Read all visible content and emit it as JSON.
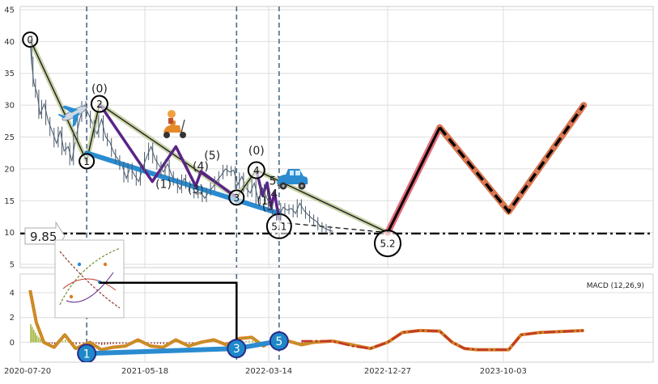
{
  "chart_data": [
    {
      "type": "line",
      "panel": "price",
      "title": "",
      "xlabel": "",
      "ylabel": "",
      "ylim": [
        4.5,
        45.5
      ],
      "y_ticks": [
        5,
        10,
        15,
        20,
        25,
        30,
        35,
        40,
        45
      ],
      "x_ticks": [
        "2020-07-20",
        "2021-05-18",
        "2022-03-14",
        "2022-12-27",
        "2023-10-03"
      ],
      "x_tick_dates": [
        "2020-07-20",
        "2021-05-18",
        "2022-03-14",
        "2022-12-27",
        "2023-10-03"
      ],
      "xlim": [
        "2020-07-20",
        "2024-09-30"
      ],
      "grid": true,
      "price_series": {
        "name": "",
        "x": [
          "2020-08-13",
          "2020-08-16",
          "2020-08-22",
          "2020-08-30",
          "2020-09-06",
          "2020-09-16",
          "2020-09-26",
          "2020-10-06",
          "2020-10-16",
          "2020-10-25",
          "2020-11-03",
          "2020-11-13",
          "2020-11-22",
          "2020-12-02",
          "2020-12-12",
          "2020-12-22",
          "2021-01-02",
          "2021-01-12",
          "2021-01-22",
          "2021-02-02",
          "2021-02-12",
          "2021-02-22",
          "2021-03-04",
          "2021-03-14",
          "2021-03-24",
          "2021-04-03",
          "2021-04-13",
          "2021-04-23",
          "2021-05-03",
          "2021-05-13",
          "2021-05-23",
          "2021-06-02",
          "2021-06-12",
          "2021-06-22",
          "2021-07-02",
          "2021-07-12",
          "2021-07-22",
          "2021-08-01",
          "2021-08-11",
          "2021-08-21",
          "2021-08-31",
          "2021-09-10",
          "2021-09-20",
          "2021-09-30",
          "2021-10-10",
          "2021-10-20",
          "2021-10-30",
          "2021-11-09",
          "2021-11-19",
          "2021-11-29",
          "2021-12-09",
          "2021-12-19",
          "2021-12-29",
          "2022-01-08",
          "2022-01-18",
          "2022-01-28",
          "2022-02-07",
          "2022-02-17",
          "2022-02-27",
          "2022-03-09",
          "2022-03-19",
          "2022-03-29",
          "2022-04-08",
          "2022-04-18",
          "2022-04-28",
          "2022-05-08",
          "2022-05-18",
          "2022-05-28",
          "2022-06-07",
          "2022-06-17",
          "2022-06-27",
          "2022-07-07",
          "2022-07-17",
          "2022-07-27",
          "2022-08-06",
          "2022-08-16"
        ],
        "y": [
          40.3,
          37.0,
          33.5,
          31.8,
          28.5,
          30.2,
          27.5,
          25.8,
          24.0,
          26.0,
          22.8,
          23.5,
          21.2,
          25.0,
          28.0,
          30.0,
          28.5,
          27.0,
          25.5,
          27.8,
          25.0,
          24.2,
          22.5,
          21.5,
          20.5,
          18.5,
          20.3,
          19.0,
          18.0,
          20.2,
          22.0,
          23.5,
          21.5,
          20.5,
          19.5,
          20.8,
          19.0,
          18.0,
          16.8,
          18.5,
          17.5,
          17.0,
          16.0,
          16.3,
          15.4,
          16.4,
          17.2,
          18.2,
          19.0,
          20.0,
          19.5,
          19.8,
          17.5,
          18.8,
          17.0,
          16.2,
          17.8,
          15.0,
          17.0,
          15.5,
          14.0,
          13.0,
          12.5,
          14.0,
          13.5,
          13.8,
          13.0,
          14.6,
          13.5,
          12.8,
          12.2,
          11.8,
          11.0,
          10.7,
          10.4,
          10.2
        ]
      },
      "projection": {
        "x": [
          "2022-12-27",
          "2023-05-02",
          "2023-10-16",
          "2024-04-15"
        ],
        "y": [
          10.0,
          26.5,
          13.3,
          30.0
        ]
      },
      "horizontal_line": {
        "value": 9.85,
        "label": "9.85"
      },
      "vertical_lines": [
        "2020-12-28",
        "2021-12-26",
        "2022-04-08"
      ],
      "main_wave": [
        {
          "date": "2020-08-13",
          "value": 40.3,
          "label": "0"
        },
        {
          "date": "2020-12-28",
          "value": 21.2,
          "label": "1"
        },
        {
          "date": "2021-01-28",
          "value": 30.2,
          "label": "2"
        },
        {
          "date": "2021-12-26",
          "value": 15.5,
          "label": "3"
        },
        {
          "date": "2022-02-12",
          "value": 19.8,
          "label": "4"
        },
        {
          "date": "2022-04-08",
          "value": 11.0,
          "label": "5.1"
        },
        {
          "date": "2022-12-27",
          "value": 8.3,
          "label": "5.2"
        }
      ],
      "sub_wave_labels": [
        {
          "date": "2021-01-28",
          "value": 32.0,
          "label": "(0)"
        },
        {
          "date": "2021-07-02",
          "value": 17.0,
          "label": "(1)"
        },
        {
          "date": "2021-09-18",
          "value": 16.2,
          "label": "(3)"
        },
        {
          "date": "2021-09-30",
          "value": 19.8,
          "label": "(4)"
        },
        {
          "date": "2021-10-28",
          "value": 21.5,
          "label": "(5)"
        },
        {
          "date": "2022-02-12",
          "value": 22.3,
          "label": "(0)"
        },
        {
          "date": "2022-02-27",
          "value": 14.4,
          "label": "(1"
        },
        {
          "date": "2022-03-12",
          "value": 13.5,
          "label": "(3"
        },
        {
          "date": "2022-03-22",
          "value": 15.5,
          "label": "(4"
        },
        {
          "date": "2022-03-29",
          "value": 17.5,
          "label": "5)"
        }
      ],
      "icons": [
        "airplane-icon",
        "scooter-icon",
        "car-icon",
        "hint-arrow-icon",
        "wave-thumbnail-icon"
      ],
      "colors": {
        "price": "#4a5a6b",
        "trend": "#2a8bd0",
        "wave_outline": "#c9d3a9",
        "sub_wave": "#5a2486",
        "projection_glow": "#e56b7a",
        "projection_up": "#d97752",
        "dashed_line": "#000000",
        "vertical_line": "#4a6a8a"
      }
    },
    {
      "type": "line",
      "panel": "macd",
      "title": "MACD (12,26,9)",
      "ylim": [
        -1.6,
        5.5
      ],
      "y_ticks": [
        0,
        2,
        4
      ],
      "x_ticks": [
        "2020-07-20",
        "2021-05-18",
        "2022-03-14",
        "2022-12-27",
        "2023-10-03"
      ],
      "series": [
        {
          "name": "",
          "x": [
            "2020-08-13",
            "2020-08-28",
            "2020-09-15",
            "2020-10-10",
            "2020-11-05",
            "2020-12-01",
            "2021-01-05",
            "2021-02-01",
            "2021-03-01",
            "2021-04-01",
            "2021-05-01",
            "2021-06-01",
            "2021-07-01",
            "2021-08-01",
            "2021-09-01",
            "2021-10-01",
            "2021-11-01",
            "2021-12-01",
            "2022-01-01",
            "2022-02-01",
            "2022-03-01",
            "2022-04-01",
            "2022-05-01",
            "2022-06-01",
            "2022-07-01",
            "2022-08-15",
            "2022-10-01",
            "2022-11-15",
            "2022-12-27",
            "2023-02-01",
            "2023-03-15",
            "2023-05-02",
            "2023-06-01",
            "2023-07-01",
            "2023-08-01",
            "2023-09-01",
            "2023-10-16",
            "2023-11-15",
            "2024-01-01",
            "2024-04-15"
          ],
          "y": [
            4.2,
            1.6,
            0.0,
            -0.4,
            0.6,
            -0.5,
            0.0,
            -0.6,
            -0.4,
            -0.3,
            0.2,
            -0.3,
            -0.4,
            0.2,
            -0.3,
            0.0,
            0.2,
            -0.2,
            0.3,
            0.4,
            -0.3,
            0.3,
            0.1,
            -0.2,
            0.0,
            0.1,
            -0.2,
            -0.5,
            0.0,
            0.8,
            0.95,
            0.9,
            0.0,
            -0.5,
            -0.6,
            -0.6,
            -0.6,
            0.6,
            0.8,
            0.95
          ]
        }
      ],
      "signal": {
        "x": [
          "2022-06-01",
          "2022-08-15",
          "2022-10-01",
          "2022-11-15",
          "2022-12-27",
          "2023-02-01",
          "2023-03-15",
          "2023-05-02",
          "2023-06-01",
          "2023-07-01",
          "2023-08-01",
          "2023-09-01",
          "2023-10-16",
          "2023-11-15",
          "2024-01-01",
          "2024-04-15"
        ],
        "y": [
          0.1,
          0.1,
          -0.3,
          -0.5,
          0.0,
          0.8,
          0.95,
          0.9,
          0.0,
          -0.5,
          -0.6,
          -0.6,
          -0.6,
          0.6,
          0.8,
          0.95
        ]
      },
      "trend_line": {
        "x": [
          "2020-12-28",
          "2021-12-26",
          "2022-04-08"
        ],
        "y": [
          -0.9,
          -0.5,
          0.1
        ],
        "labels": [
          "1",
          "3",
          "5"
        ]
      },
      "step_line": {
        "x": [
          "2021-01-28",
          "2021-12-26",
          "2021-12-26"
        ],
        "y": [
          4.8,
          4.8,
          -0.5
        ]
      },
      "colors": {
        "macd": "#e07a1e",
        "signal": "#c0392b",
        "histogram": "#8a3020",
        "trend": "#2a8bd0",
        "marker": "#1e88c8"
      }
    }
  ]
}
